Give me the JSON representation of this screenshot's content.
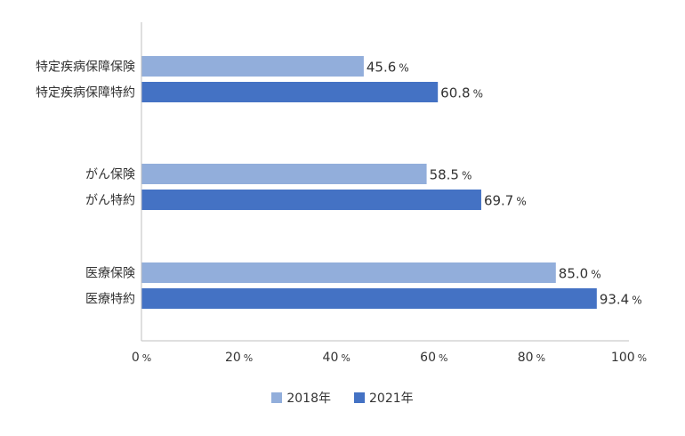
{
  "chart_data": {
    "type": "bar",
    "orientation": "horizontal",
    "categories": [
      "特定疾病保障保険",
      "特定疾病保障特約",
      "がん保険",
      "がん特約",
      "医療保険",
      "医療特約"
    ],
    "series": [
      {
        "name": "2018年",
        "color": "#92aedb",
        "values": [
          45.6,
          null,
          58.5,
          null,
          85.0,
          null
        ]
      },
      {
        "name": "2021年",
        "color": "#4472c4",
        "values": [
          null,
          60.8,
          null,
          69.7,
          null,
          93.4
        ]
      }
    ],
    "value_labels": [
      "45.6",
      "60.8",
      "58.5",
      "69.7",
      "85.0",
      "93.4"
    ],
    "value_unit": "%",
    "xlim": [
      0,
      100
    ],
    "x_ticks": [
      0,
      20,
      40,
      60,
      80,
      100
    ],
    "x_tick_unit": "%",
    "grid": false,
    "legend_position": "bottom-center"
  }
}
